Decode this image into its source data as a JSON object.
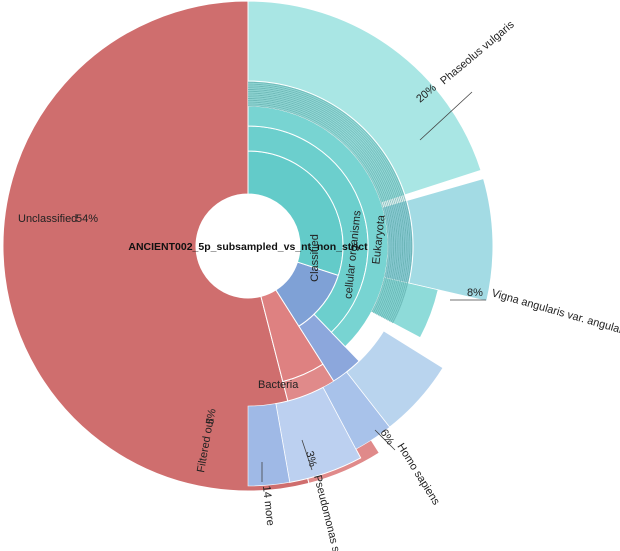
{
  "chart_data": {
    "type": "sunburst",
    "title": "ANCIENT002_5p_subsampled_vs_nt_non_strict",
    "ring1": [
      {
        "name": "Unclassified",
        "percent": "54%",
        "value": 54,
        "color": "#cf6e6e"
      },
      {
        "name": "Filtered out",
        "percent": "5%",
        "value": 5,
        "color": "#de8181"
      },
      {
        "name": "",
        "value": 11,
        "color": "#8fa6d8"
      },
      {
        "name": "Classified",
        "value": 30,
        "color": "#63cbc9"
      }
    ],
    "ring2": [
      {
        "name": "cellular organisms",
        "value": 30,
        "color": "#6ccfcd"
      },
      {
        "name": "Bacteria",
        "value": 7,
        "color": "#8ca7dc"
      }
    ],
    "ring3": [
      {
        "name": "Eukaryota",
        "value": 30,
        "color": "#78d4d2"
      }
    ],
    "outer": [
      {
        "name": "Phaseolus vulgaris",
        "percent": "20%",
        "value": 20,
        "color": "#a9e6e4"
      },
      {
        "name": "Vigna angularis var. angularis",
        "percent": "8%",
        "value": 8,
        "color": "#a3dbe4"
      },
      {
        "name": "Homo sapiens",
        "percent": "6%",
        "value": 6,
        "color": "#b9d4ee"
      },
      {
        "name": "Pseudomonas sp.",
        "percent": "3%",
        "value": 3,
        "color": "#bcd0f0"
      },
      {
        "name": "14 more",
        "value": 2
      }
    ]
  }
}
